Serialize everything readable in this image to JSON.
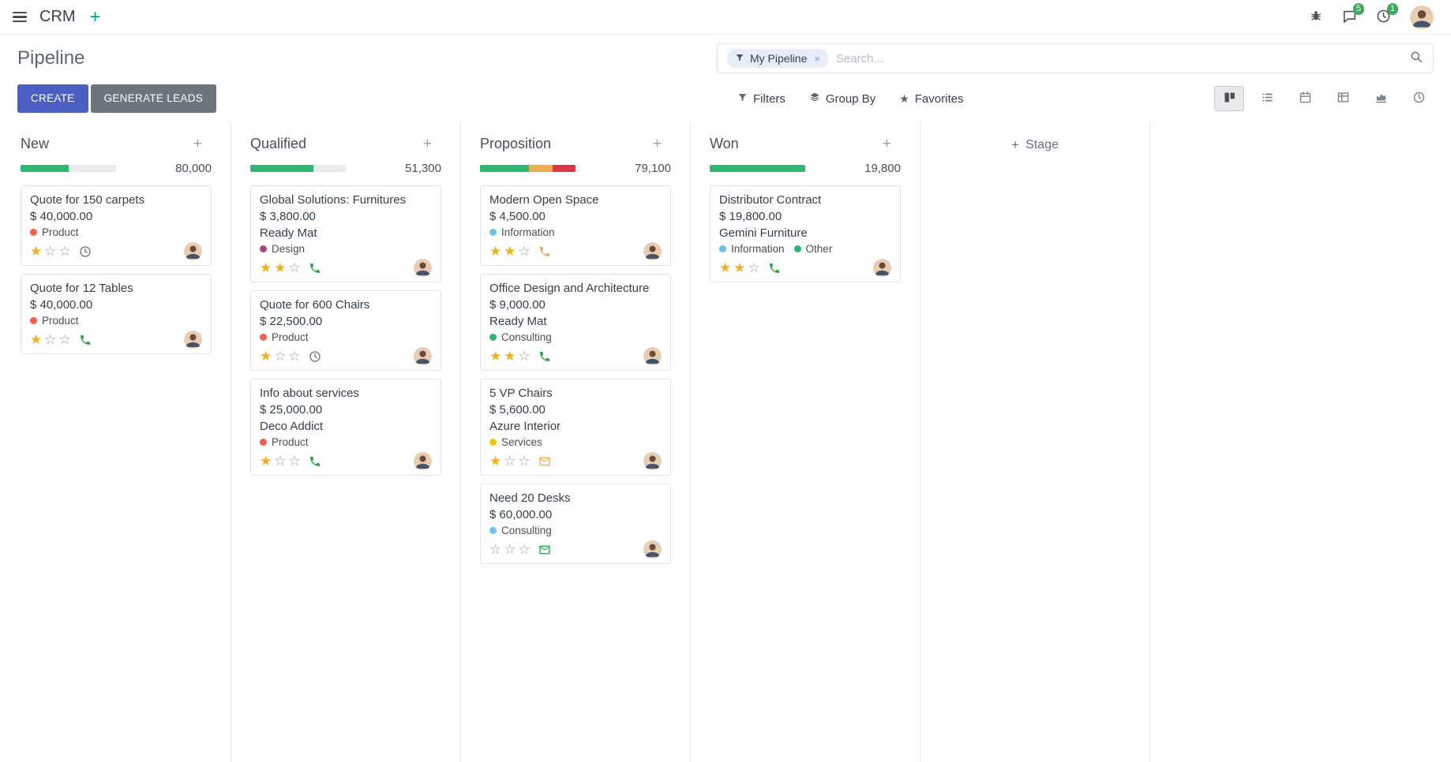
{
  "navbar": {
    "brand": "CRM",
    "messages_badge": "5",
    "activities_badge": "1"
  },
  "control_panel": {
    "title": "Pipeline",
    "create_label": "CREATE",
    "generate_leads_label": "GENERATE LEADS",
    "filters_label": "Filters",
    "group_by_label": "Group By",
    "favorites_label": "Favorites",
    "search": {
      "facet_label": "My Pipeline",
      "facet_remove": "×",
      "placeholder": "Search..."
    }
  },
  "colors": {
    "primary": "#4A5FC1",
    "secondary": "#6c757d",
    "success": "#2eb872",
    "warning": "#f0ad4e",
    "danger": "#dc3545",
    "muted_bar": "#e9ecef",
    "star_gold": "#f2b01e",
    "badge_green": "#42a85f"
  },
  "icons": {
    "menu-icon": "three horizontal bars",
    "plus-icon": "+",
    "bug-icon": "bug",
    "messages-icon": "speech bubble",
    "activities-icon": "clock",
    "search-icon": "magnifier",
    "filter-facet-icon": "funnel",
    "filters-icon": "funnel",
    "group-by-icon": "stacked layers",
    "favorites-icon": "★",
    "view-kanban-icon": "kanban columns",
    "view-list-icon": "list rows",
    "view-calendar-icon": "calendar",
    "view-pivot-icon": "table grid",
    "view-graph-icon": "area chart",
    "view-activity-icon": "clock",
    "star-filled": "★",
    "star-empty": "☆",
    "phone-activity-icon": "phone handset",
    "envelope-activity-icon": "envelope",
    "clock-activity-icon": "clock"
  },
  "board": {
    "add_stage_label": "Stage",
    "columns": [
      {
        "name": "New",
        "counter": "80,000",
        "progress": [
          {
            "status": "success",
            "color": "#2eb872",
            "pct": 50
          },
          {
            "status": "muted",
            "color": "#e9ecef",
            "pct": 50
          }
        ],
        "cards": [
          {
            "title": "Quote for 150 carpets",
            "amount": "$ 40,000.00",
            "partner": "",
            "tags": [
              {
                "label": "Product",
                "color": "#f06050"
              }
            ],
            "stars_filled": 1,
            "stars_total": 3,
            "activity": {
              "type": "clock",
              "color": "#6e757c"
            }
          },
          {
            "title": "Quote for 12 Tables",
            "amount": "$ 40,000.00",
            "partner": "",
            "tags": [
              {
                "label": "Product",
                "color": "#f06050"
              }
            ],
            "stars_filled": 1,
            "stars_total": 3,
            "activity": {
              "type": "phone",
              "color": "#28a745"
            }
          }
        ]
      },
      {
        "name": "Qualified",
        "counter": "51,300",
        "progress": [
          {
            "status": "success",
            "color": "#2eb872",
            "pct": 66
          },
          {
            "status": "muted",
            "color": "#e9ecef",
            "pct": 34
          }
        ],
        "cards": [
          {
            "title": "Global Solutions: Furnitures",
            "amount": "$ 3,800.00",
            "partner": "Ready Mat",
            "tags": [
              {
                "label": "Design",
                "color": "#ad4579"
              }
            ],
            "stars_filled": 2,
            "stars_total": 3,
            "activity": {
              "type": "phone",
              "color": "#28a745"
            }
          },
          {
            "title": "Quote for 600 Chairs",
            "amount": "$ 22,500.00",
            "partner": "",
            "tags": [
              {
                "label": "Product",
                "color": "#f06050"
              }
            ],
            "stars_filled": 1,
            "stars_total": 3,
            "activity": {
              "type": "clock",
              "color": "#6e757c"
            }
          },
          {
            "title": "Info about services",
            "amount": "$ 25,000.00",
            "partner": "Deco Addict",
            "tags": [
              {
                "label": "Product",
                "color": "#f06050"
              }
            ],
            "stars_filled": 1,
            "stars_total": 3,
            "activity": {
              "type": "phone",
              "color": "#28a745"
            }
          }
        ]
      },
      {
        "name": "Proposition",
        "counter": "79,100",
        "progress": [
          {
            "status": "success",
            "color": "#2eb872",
            "pct": 51
          },
          {
            "status": "warning",
            "color": "#f0ad4e",
            "pct": 25
          },
          {
            "status": "danger",
            "color": "#dc3545",
            "pct": 24
          }
        ],
        "cards": [
          {
            "title": "Modern Open Space",
            "amount": "$ 4,500.00",
            "partner": "",
            "tags": [
              {
                "label": "Information",
                "color": "#6cc1ed"
              }
            ],
            "stars_filled": 2,
            "stars_total": 3,
            "activity": {
              "type": "phone",
              "color": "#f0ad4e"
            }
          },
          {
            "title": "Office Design and Architecture",
            "amount": "$ 9,000.00",
            "partner": "Ready Mat",
            "tags": [
              {
                "label": "Consulting",
                "color": "#2eb872"
              }
            ],
            "stars_filled": 2,
            "stars_total": 3,
            "activity": {
              "type": "phone",
              "color": "#28a745"
            }
          },
          {
            "title": "5 VP Chairs",
            "amount": "$ 5,600.00",
            "partner": "Azure Interior",
            "tags": [
              {
                "label": "Services",
                "color": "#f1c40f"
              }
            ],
            "stars_filled": 1,
            "stars_total": 3,
            "activity": {
              "type": "envelope",
              "color": "#f0ad4e"
            }
          },
          {
            "title": "Need 20 Desks",
            "amount": "$ 60,000.00",
            "partner": "",
            "tags": [
              {
                "label": "Consulting",
                "color": "#6cc1ed"
              }
            ],
            "stars_filled": 0,
            "stars_total": 3,
            "activity": {
              "type": "envelope",
              "color": "#28a745"
            }
          }
        ]
      },
      {
        "name": "Won",
        "counter": "19,800",
        "progress": [
          {
            "status": "success",
            "color": "#2eb872",
            "pct": 100
          }
        ],
        "cards": [
          {
            "title": "Distributor Contract",
            "amount": "$ 19,800.00",
            "partner": "Gemini Furniture",
            "tags": [
              {
                "label": "Information",
                "color": "#6cc1ed"
              },
              {
                "label": "Other",
                "color": "#2eb872"
              }
            ],
            "stars_filled": 2,
            "stars_total": 3,
            "activity": {
              "type": "phone",
              "color": "#28a745"
            }
          }
        ]
      }
    ]
  }
}
